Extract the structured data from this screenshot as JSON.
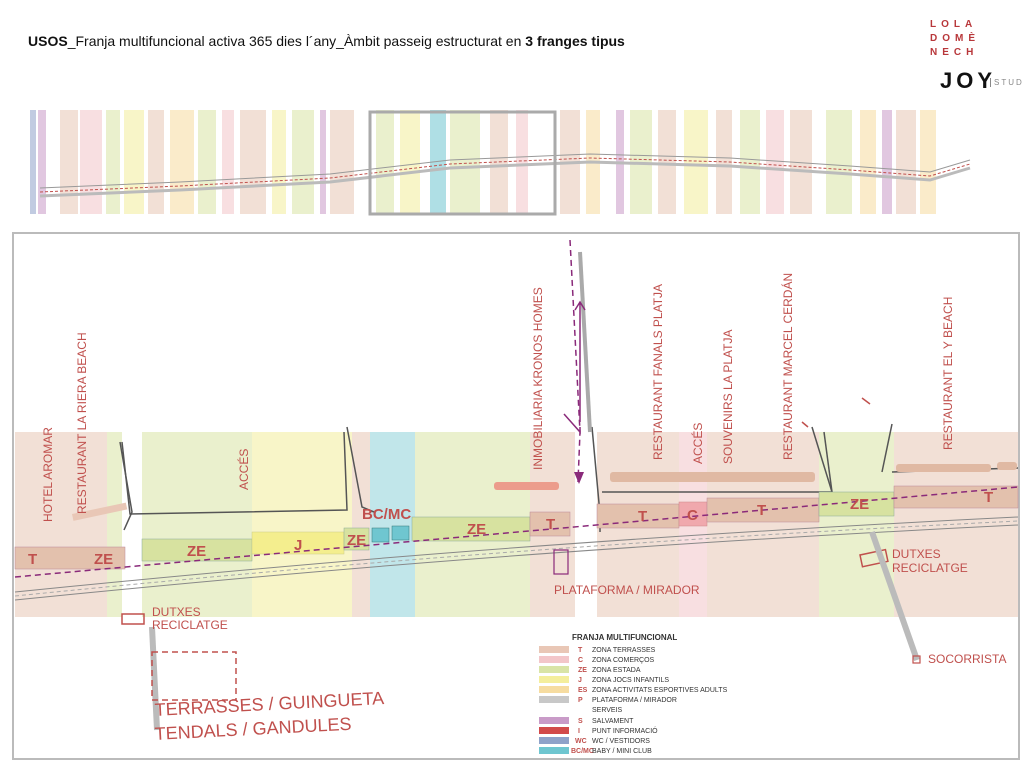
{
  "title": {
    "bold": "USOS",
    "text": "_Franja multifuncional activa 365 dies l´any_Àmbit passeig estructurat en ",
    "bold2": "3 franges tipus"
  },
  "logo": {
    "l1": "LOLA",
    "l2": "DOMÈ",
    "l3": "NECH",
    "joy": "JOY",
    "studio": "STUDIO"
  },
  "colors": {
    "T": "#e9c7b6",
    "C": "#f3c6c9",
    "ZE": "#d9e4a6",
    "J": "#f4ee9c",
    "ES": "#f6dca0",
    "P": "#c8c8c8",
    "S": "#c99bc8",
    "I": "#d24a4a",
    "WC": "#8fa2c9",
    "BCMC": "#6fc6d0",
    "accent": "#c0504d"
  },
  "labels": {
    "hotel_aromar": "HOTEL AROMAR",
    "restaurant_la_riera": "RESTAURANT LA RIERA BEACH",
    "acces": "ACCÉS",
    "bc_mc": "BC/MC",
    "inmobiliaria": "INMOBILIARIA KRONOS HOMES",
    "restaurant_fanals": "RESTAURANT FANALS PLATJA",
    "souvenirs": "SOUVENIRS LA PLATJA",
    "restaurant_marcel": "RESTAURANT MARCEL CERDÁN",
    "restaurant_ely": "RESTAURANT EL Y BEACH",
    "dutxes": "DUTXES",
    "reciclatge": "RECICLATGE",
    "plataforma": "PLATAFORMA / MIRADOR",
    "socorrista": "SOCORRISTA",
    "terrasses": "TERRASSES / GUINGUETA",
    "tendals": "TENDALS / GANDULES",
    "T": "T",
    "ZE": "ZE",
    "J": "J",
    "C": "C"
  },
  "legend": {
    "title": "FRANJA MULTIFUNCIONAL",
    "items": [
      {
        "code": "T",
        "label": "ZONA TERRASSES"
      },
      {
        "code": "C",
        "label": "ZONA COMERÇOS"
      },
      {
        "code": "ZE",
        "label": "ZONA ESTADA"
      },
      {
        "code": "J",
        "label": "ZONA JOCS INFANTILS"
      },
      {
        "code": "ES",
        "label": "ZONA ACTIVITATS ESPORTIVES ADULTS"
      },
      {
        "code": "P",
        "label": "PLATAFORMA / MIRADOR"
      }
    ],
    "serveis": "SERVEIS",
    "services": [
      {
        "code": "S",
        "label": "SALVAMENT"
      },
      {
        "code": "I",
        "label": "PUNT INFORMACIÓ"
      },
      {
        "code": "WC",
        "label": "WC / VESTIDORS"
      },
      {
        "code": "BC/MC",
        "label": "BABY / MINI CLUB"
      }
    ]
  }
}
